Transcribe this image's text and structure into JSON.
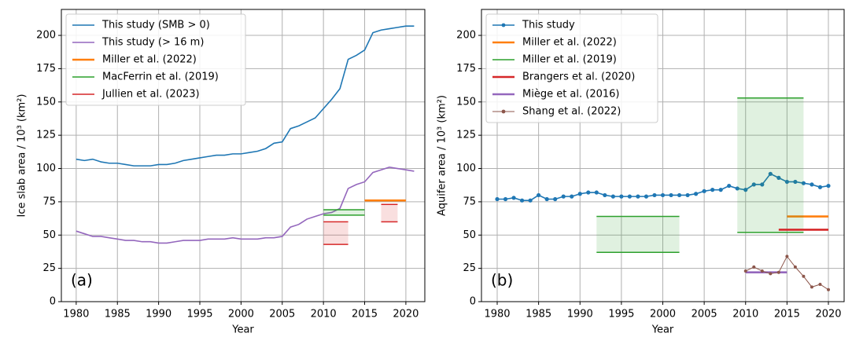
{
  "chart_data": [
    {
      "type": "line",
      "panel_label": "(a)",
      "x_label": "Year",
      "y_label": "Ice slab area / 10³ (km²)",
      "xlim": [
        1978.2,
        2022.3
      ],
      "ylim": [
        0,
        219.5
      ],
      "xticks": [
        1980,
        1985,
        1990,
        1995,
        2000,
        2005,
        2010,
        2015,
        2020
      ],
      "yticks": [
        0,
        25,
        50,
        75,
        100,
        125,
        150,
        175,
        200
      ],
      "grid": true,
      "legend": "upper left",
      "series": [
        {
          "name": "This study (SMB > 0)",
          "color": "#1f77b4",
          "linewidth": 1.6,
          "x": [
            1980,
            1981,
            1982,
            1983,
            1984,
            1985,
            1986,
            1987,
            1988,
            1989,
            1990,
            1991,
            1992,
            1993,
            1994,
            1995,
            1996,
            1997,
            1998,
            1999,
            2000,
            2001,
            2002,
            2003,
            2004,
            2005,
            2006,
            2007,
            2008,
            2009,
            2010,
            2011,
            2012,
            2013,
            2014,
            2015,
            2016,
            2017,
            2018,
            2019,
            2020,
            2021
          ],
          "values": [
            107,
            106,
            107,
            105,
            104,
            104,
            103,
            102,
            102,
            102,
            103,
            103,
            104,
            106,
            107,
            108,
            109,
            110,
            110,
            111,
            111,
            112,
            113,
            115,
            119,
            120,
            130,
            132,
            135,
            138,
            145,
            152,
            160,
            182,
            185,
            189,
            202,
            204,
            205,
            206,
            207,
            207
          ]
        },
        {
          "name": "This study (> 16 m)",
          "color": "#9467bd",
          "linewidth": 1.6,
          "x": [
            1980,
            1981,
            1982,
            1983,
            1984,
            1985,
            1986,
            1987,
            1988,
            1989,
            1990,
            1991,
            1992,
            1993,
            1994,
            1995,
            1996,
            1997,
            1998,
            1999,
            2000,
            2001,
            2002,
            2003,
            2004,
            2005,
            2006,
            2007,
            2008,
            2009,
            2010,
            2011,
            2012,
            2013,
            2014,
            2015,
            2016,
            2017,
            2018,
            2019,
            2020,
            2021
          ],
          "values": [
            53,
            51,
            49,
            49,
            48,
            47,
            46,
            46,
            45,
            45,
            44,
            44,
            45,
            46,
            46,
            46,
            47,
            47,
            47,
            48,
            47,
            47,
            47,
            48,
            48,
            49,
            56,
            58,
            62,
            64,
            66,
            67,
            70,
            85,
            88,
            90,
            97,
            99,
            101,
            100,
            99,
            98
          ]
        },
        {
          "name": "Miller et al. (2022)",
          "color": "#ff7f0e",
          "linewidth": 2.6,
          "spans": [
            {
              "x": [
                2015,
                2020
              ],
              "values": [
                76
              ]
            }
          ]
        },
        {
          "name": "MacFerrin et al. (2019)",
          "color": "#2ca02c",
          "linewidth": 1.5,
          "spans": [
            {
              "x": [
                2010,
                2015
              ],
              "values": [
                65,
                69
              ]
            }
          ]
        },
        {
          "name": "Jullien et al. (2023)",
          "color": "#d62728",
          "linewidth": 1.5,
          "spans": [
            {
              "x": [
                2010,
                2013
              ],
              "values": [
                43,
                60
              ]
            },
            {
              "x": [
                2017,
                2019
              ],
              "values": [
                60,
                73
              ]
            }
          ]
        }
      ]
    },
    {
      "type": "line",
      "panel_label": "(b)",
      "x_label": "Year",
      "y_label": "Aquifer area / 10³ (km²)",
      "xlim": [
        1978.1,
        2021.9
      ],
      "ylim": [
        0,
        219.5
      ],
      "xticks": [
        1980,
        1985,
        1990,
        1995,
        2000,
        2005,
        2010,
        2015,
        2020
      ],
      "yticks": [
        0,
        25,
        50,
        75,
        100,
        125,
        150,
        175,
        200
      ],
      "grid": true,
      "legend": "upper left",
      "series": [
        {
          "name": "This study",
          "color": "#1f77b4",
          "linewidth": 1.6,
          "marker": true,
          "x": [
            1980,
            1981,
            1982,
            1983,
            1984,
            1985,
            1986,
            1987,
            1988,
            1989,
            1990,
            1991,
            1992,
            1993,
            1994,
            1995,
            1996,
            1997,
            1998,
            1999,
            2000,
            2001,
            2002,
            2003,
            2004,
            2005,
            2006,
            2007,
            2008,
            2009,
            2010,
            2011,
            2012,
            2013,
            2014,
            2015,
            2016,
            2017,
            2018,
            2019,
            2020
          ],
          "values": [
            77,
            77,
            78,
            76,
            76,
            80,
            77,
            77,
            79,
            79,
            81,
            82,
            82,
            80,
            79,
            79,
            79,
            79,
            79,
            80,
            80,
            80,
            80,
            80,
            81,
            83,
            84,
            84,
            87,
            85,
            84,
            88,
            88,
            96,
            93,
            90,
            90,
            89,
            88,
            86,
            87
          ]
        },
        {
          "name": "Miller et al. (2022)",
          "color": "#ff7f0e",
          "linewidth": 2.6,
          "spans": [
            {
              "x": [
                2015,
                2020
              ],
              "values": [
                64
              ]
            }
          ]
        },
        {
          "name": "Miller et al. (2019)",
          "color": "#2ca02c",
          "linewidth": 1.5,
          "spans": [
            {
              "x": [
                1992,
                2002
              ],
              "values": [
                37,
                64
              ]
            },
            {
              "x": [
                2009,
                2017
              ],
              "values": [
                52,
                153
              ]
            }
          ]
        },
        {
          "name": "Brangers et al. (2020)",
          "color": "#d62728",
          "linewidth": 2.6,
          "spans": [
            {
              "x": [
                2014,
                2020
              ],
              "values": [
                54
              ]
            }
          ]
        },
        {
          "name": "Miège et al. (2016)",
          "color": "#9467bd",
          "linewidth": 2.6,
          "spans": [
            {
              "x": [
                2010,
                2015
              ],
              "values": [
                22
              ]
            }
          ]
        },
        {
          "name": "Shang et al. (2022)",
          "color": "#8c564b",
          "linewidth": 1,
          "marker": true,
          "x": [
            2010,
            2011,
            2012,
            2013,
            2014,
            2015,
            2016,
            2017,
            2018,
            2019,
            2020
          ],
          "values": [
            23,
            26,
            23,
            21,
            22,
            34,
            26,
            19,
            11,
            13,
            9
          ]
        }
      ]
    }
  ]
}
